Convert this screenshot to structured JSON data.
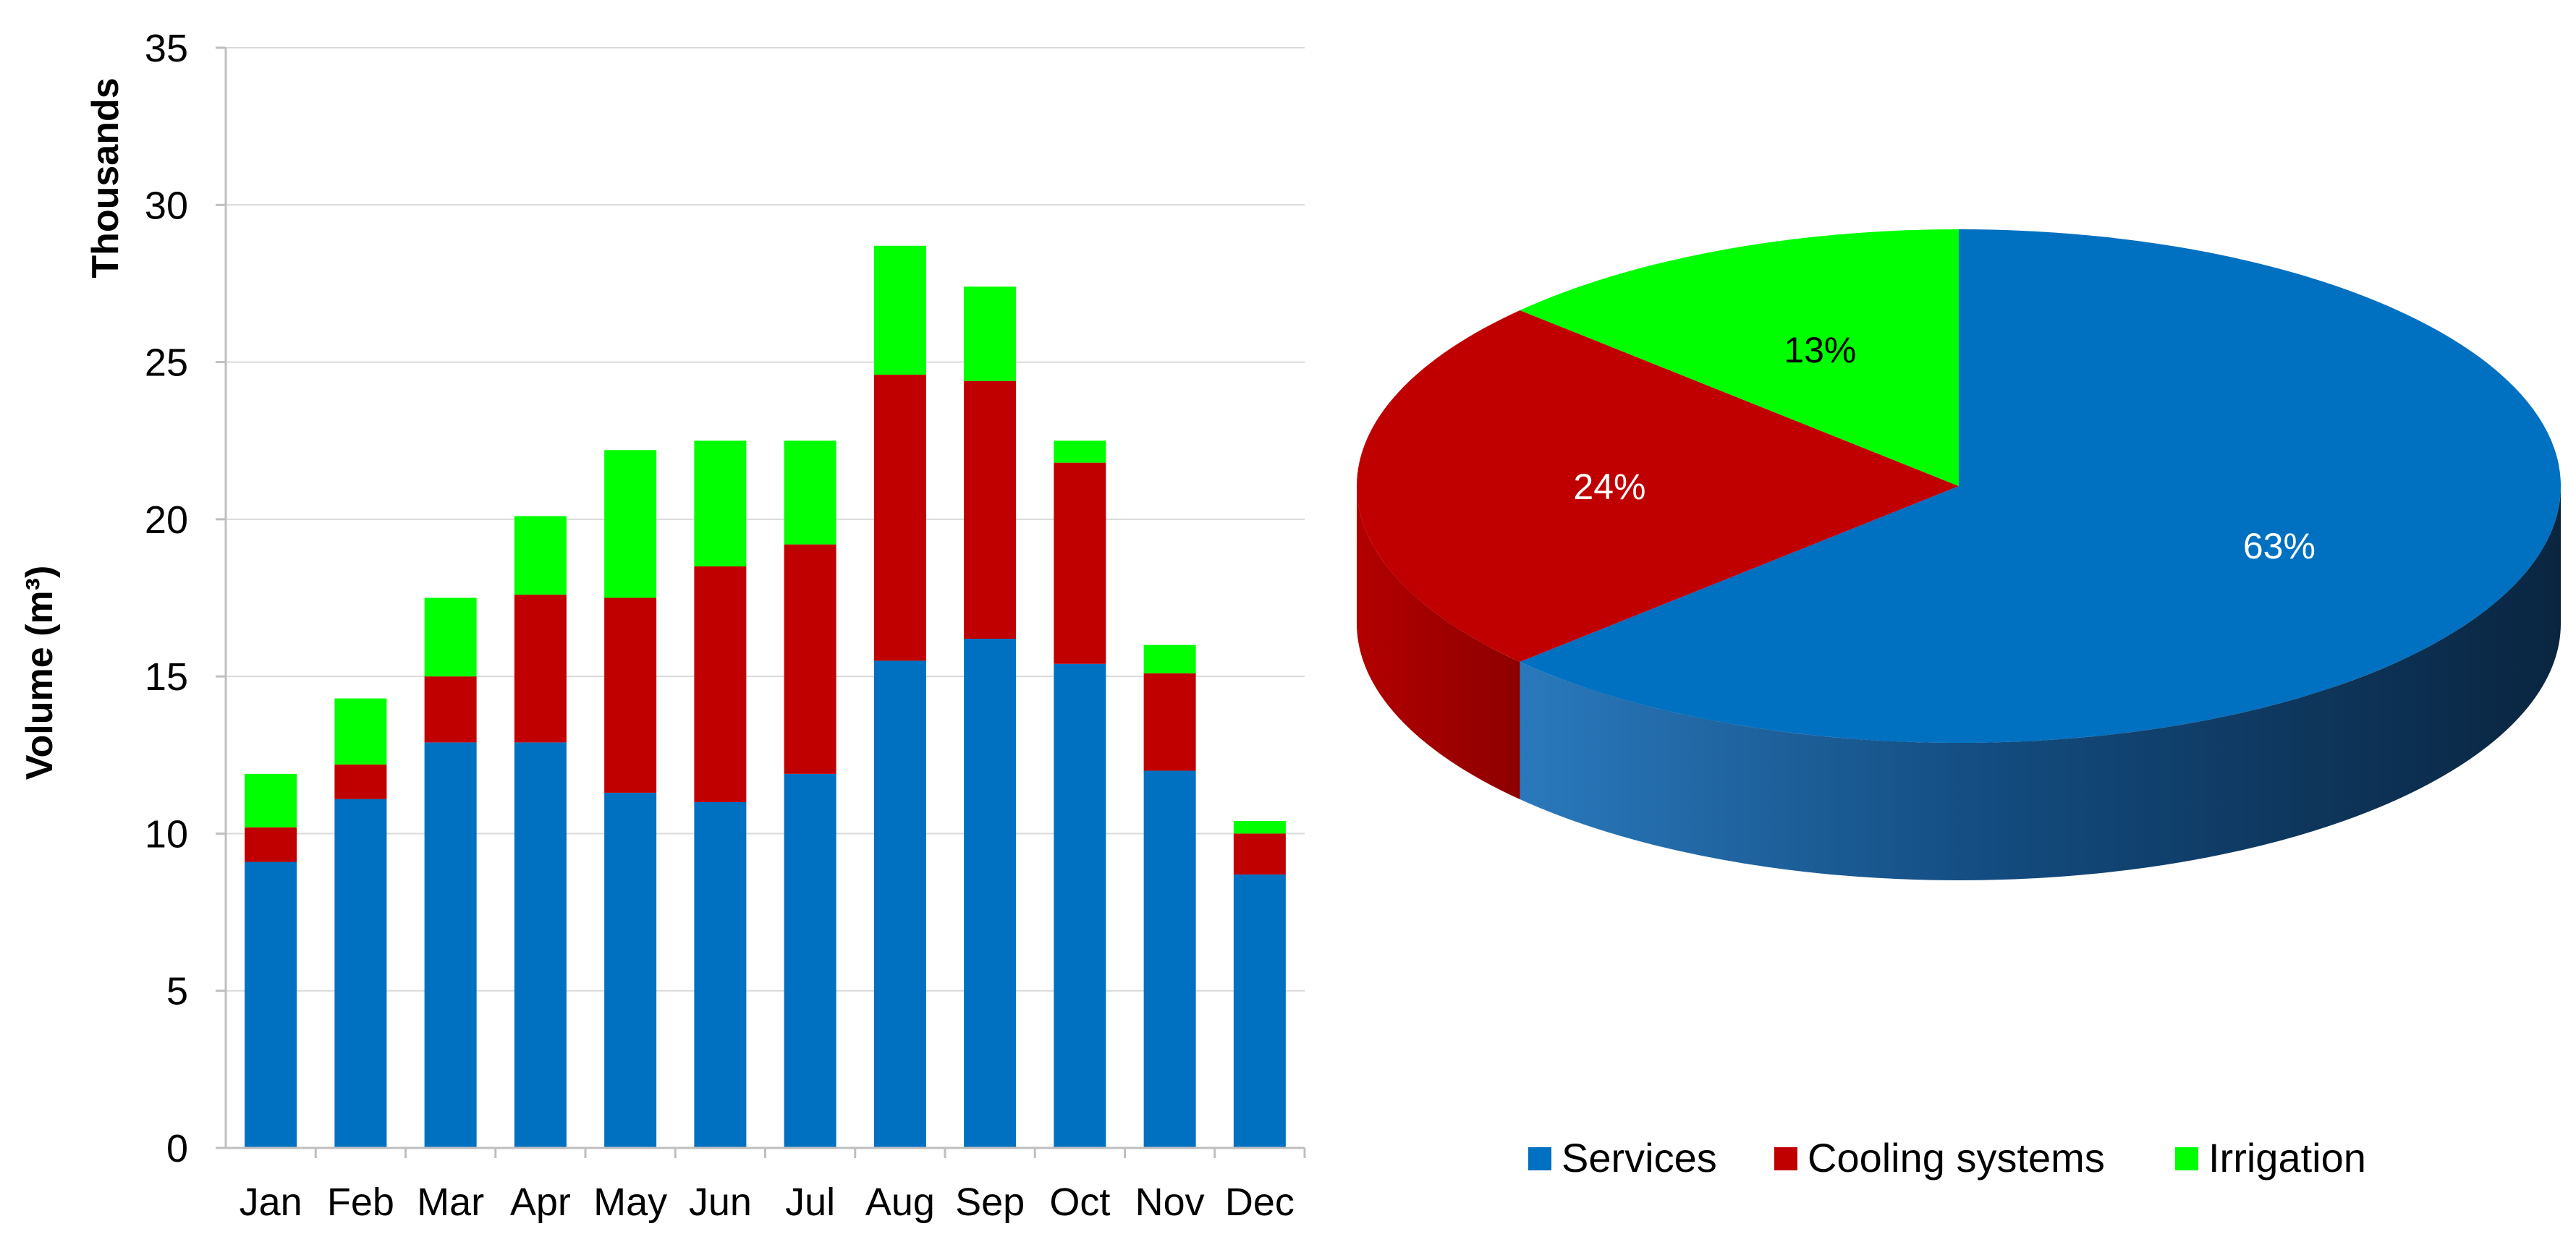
{
  "chart_data": [
    {
      "type": "bar",
      "stacked": true,
      "categories": [
        "Jan",
        "Feb",
        "Mar",
        "Apr",
        "May",
        "Jun",
        "Jul",
        "Aug",
        "Sep",
        "Oct",
        "Nov",
        "Dec"
      ],
      "series": [
        {
          "name": "Services",
          "values": [
            9.1,
            11.1,
            12.9,
            12.9,
            11.3,
            11.0,
            11.9,
            15.5,
            16.2,
            15.4,
            12.0,
            8.7
          ]
        },
        {
          "name": "Cooling systems",
          "values": [
            1.1,
            1.1,
            2.1,
            4.7,
            6.2,
            7.5,
            7.3,
            9.1,
            8.2,
            6.4,
            3.1,
            1.3
          ]
        },
        {
          "name": "Irrigation",
          "values": [
            1.7,
            2.1,
            2.5,
            2.5,
            4.7,
            4.0,
            3.3,
            4.1,
            3.0,
            0.7,
            0.9,
            0.4
          ]
        }
      ],
      "ylabel": "Volume (m³)",
      "yunit_label": "Thousands",
      "xlabel": "",
      "title": "",
      "ylim": [
        0,
        35
      ],
      "yticks": [
        "0",
        "5",
        "10",
        "15",
        "20",
        "25",
        "30",
        "35"
      ],
      "grid": true
    },
    {
      "type": "pie",
      "style": "3d",
      "labels": [
        "Services",
        "Cooling systems",
        "Irrigation"
      ],
      "values": [
        63,
        24,
        13
      ],
      "data_labels": [
        "63%",
        "24%",
        "13%"
      ],
      "legend": "bottom",
      "title": ""
    }
  ],
  "legend": {
    "items": [
      {
        "label": "Services",
        "color": "#0070C0"
      },
      {
        "label": "Cooling systems",
        "color": "#C00000"
      },
      {
        "label": "Irrigation",
        "color": "#00FF00"
      }
    ]
  },
  "colors": {
    "services": "#0070C0",
    "cooling": "#C00000",
    "irrigation": "#00FF00",
    "services_side_light": "#1A6FB2",
    "services_side_dark": "#0E2A44",
    "cooling_side": "#A50000",
    "grid": "#D9D9D9",
    "axis": "#BFBFBF",
    "text": "#000000"
  }
}
